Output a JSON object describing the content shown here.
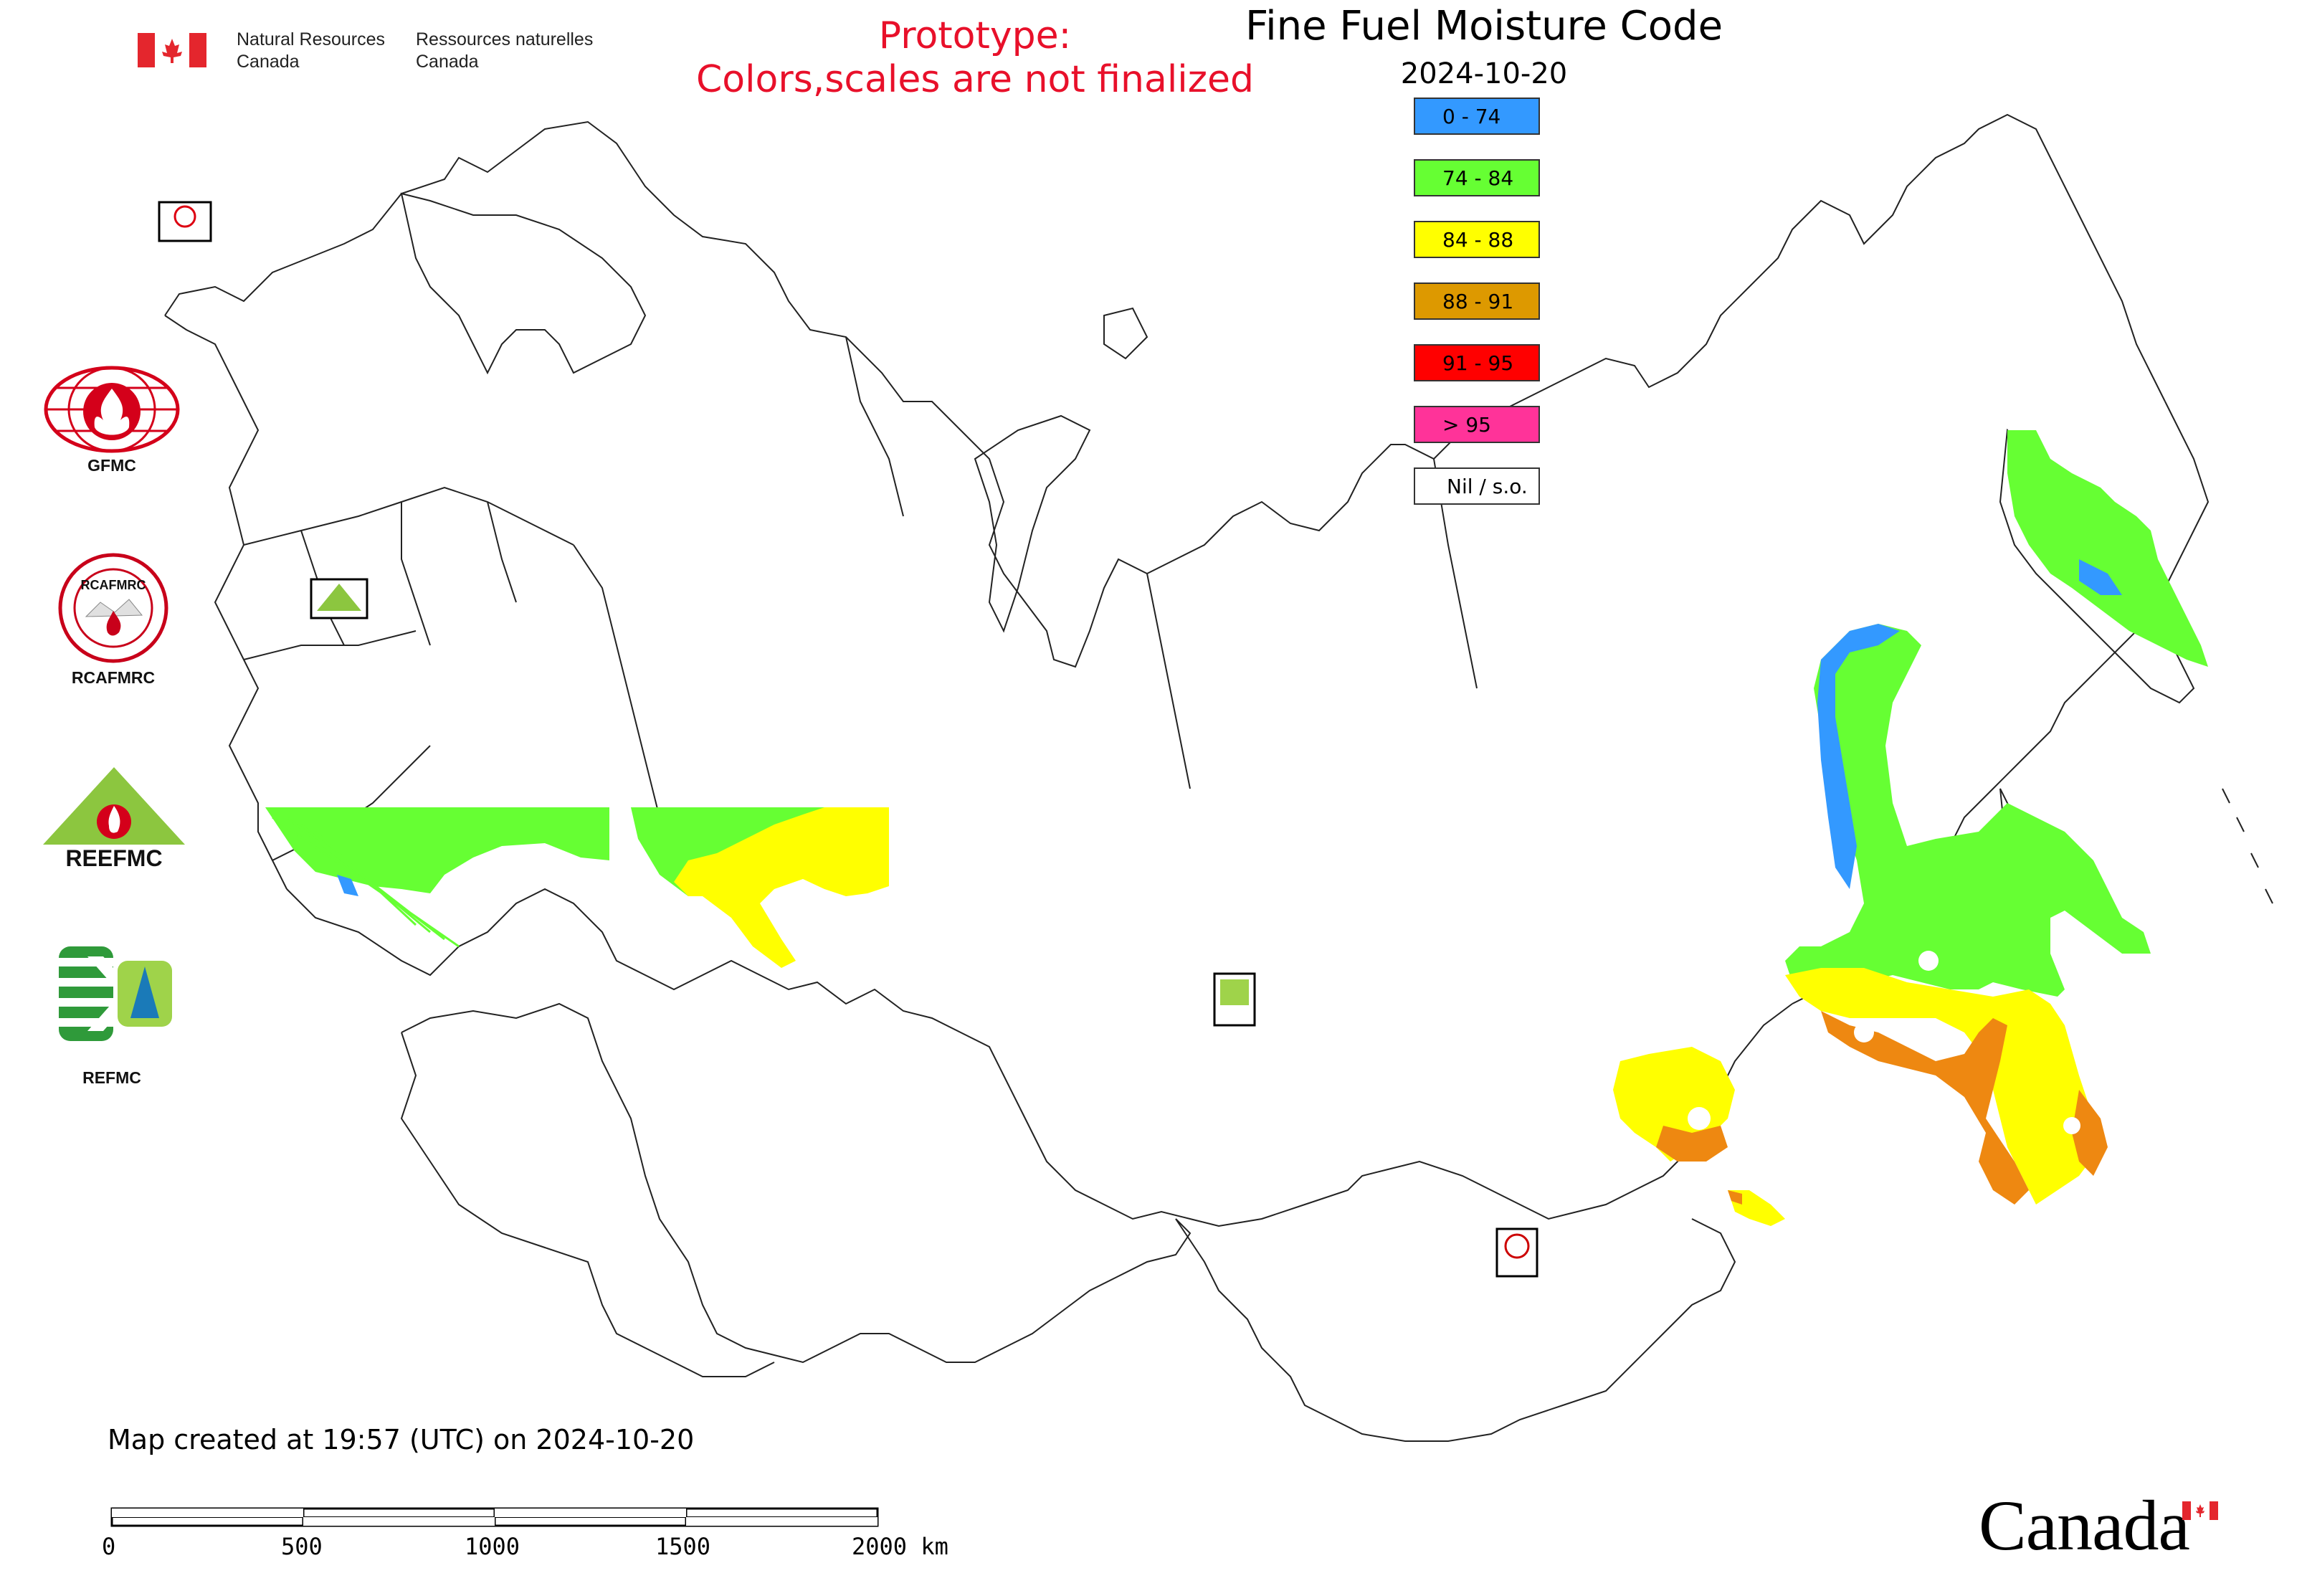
{
  "map": {
    "title": "Fine Fuel Moisture Code",
    "date": "2024-10-20",
    "prototype_notice_line1": "Prototype:",
    "prototype_notice_line2": "Colors,scales are not finalized",
    "created_note": "Map created at 19:57 (UTC) on 2024-10-20"
  },
  "nrcan": {
    "name_en_line1": "Natural Resources",
    "name_en_line2": "Canada",
    "name_fr_line1": "Ressources naturelles",
    "name_fr_line2": "Canada",
    "flag_red": "#e4262d"
  },
  "legend": [
    {
      "label": "0 - 74",
      "color": "#3399ff"
    },
    {
      "label": "74 - 84",
      "color": "#66ff33"
    },
    {
      "label": "84 - 88",
      "color": "#ffff00"
    },
    {
      "label": "88 - 91",
      "color": "#dd9900"
    },
    {
      "label": "91 - 95",
      "color": "#ff0000"
    },
    {
      "label": "> 95",
      "color": "#ff3399"
    },
    {
      "label": "Nil / s.o.",
      "color": "#ffffff"
    }
  ],
  "logos": [
    {
      "caption": "GFMC"
    },
    {
      "caption": "RCAFMRC"
    },
    {
      "caption": "REFMC"
    }
  ],
  "logo_wordmark": "REEFMC",
  "scale_bar": {
    "labels": [
      "0",
      "500",
      "1000",
      "1500",
      "2000 km"
    ]
  },
  "wordmark": "Canada"
}
